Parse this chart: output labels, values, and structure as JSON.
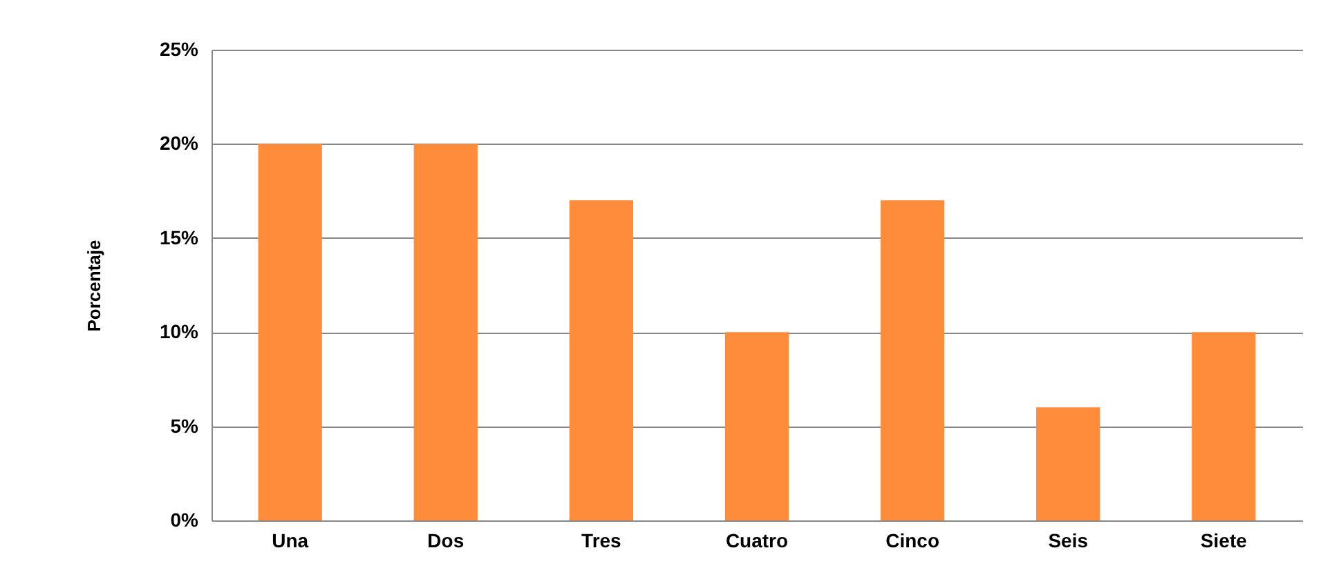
{
  "chart_data": {
    "type": "bar",
    "ylabel": "Porcentaje",
    "categories": [
      "Una",
      "Dos",
      "Tres",
      "Cuatro",
      "Cinco",
      "Seis",
      "Siete"
    ],
    "values": [
      20,
      20,
      17,
      10,
      17,
      6,
      10
    ],
    "color": "#ff8c3a",
    "ylim": [
      0,
      25
    ],
    "yticks": [
      {
        "value": 0,
        "label": "0%"
      },
      {
        "value": 5,
        "label": "5%"
      },
      {
        "value": 10,
        "label": "10%"
      },
      {
        "value": 15,
        "label": "15%"
      },
      {
        "value": 20,
        "label": "20%"
      },
      {
        "value": 25,
        "label": "25%"
      }
    ],
    "grid": "y"
  }
}
